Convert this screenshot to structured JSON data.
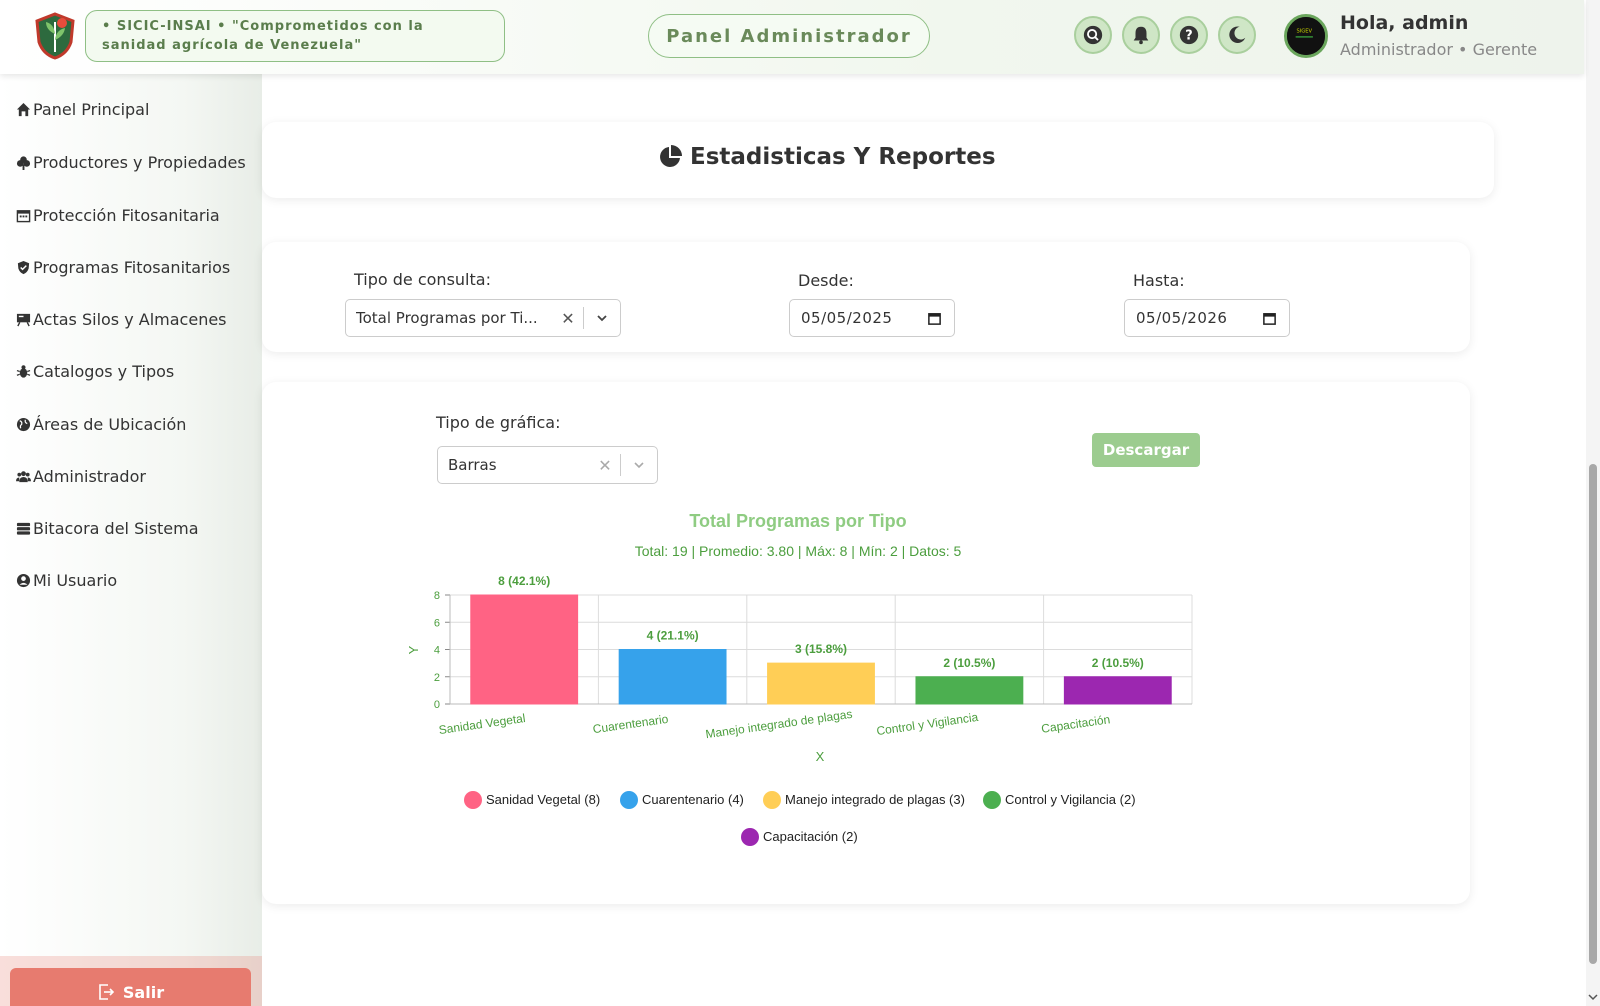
{
  "header": {
    "slogan": "• SICIC-INSAI • \"Comprometidos con la sanidad agrícola de Venezuela\"",
    "panel_title": "Panel Administrador",
    "icons": [
      "search-icon",
      "bell-icon",
      "help-icon",
      "moon-icon"
    ],
    "greeting": "Hola, admin",
    "role": "Administrador • Gerente"
  },
  "sidebar": {
    "items": [
      {
        "label": "Panel Principal",
        "icon": "home-icon"
      },
      {
        "label": "Productores y Propiedades",
        "icon": "leaf-icon"
      },
      {
        "label": "Protección Fitosanitaria",
        "icon": "calendar-icon"
      },
      {
        "label": "Programas Fitosanitarios",
        "icon": "shield-icon"
      },
      {
        "label": "Actas Silos y Almacenes",
        "icon": "board-icon"
      },
      {
        "label": "Catalogos y Tipos",
        "icon": "bug-icon"
      },
      {
        "label": "Áreas de Ubicación",
        "icon": "globe-icon"
      },
      {
        "label": "Administrador",
        "icon": "users-icon"
      },
      {
        "label": "Bitacora del Sistema",
        "icon": "database-icon"
      },
      {
        "label": "Mi Usuario",
        "icon": "user-circle-icon"
      }
    ],
    "logout_label": "Salir"
  },
  "page": {
    "title": "Estadisticas Y Reportes"
  },
  "filters": {
    "query_label": "Tipo de consulta:",
    "query_value": "Total Programas por Ti...",
    "from_label": "Desde:",
    "from_value": "05/05/2025",
    "to_label": "Hasta:",
    "to_value": "05/05/2026"
  },
  "chart_panel": {
    "type_label": "Tipo de gráfica:",
    "type_value": "Barras",
    "download_label": "Descargar"
  },
  "chart_data": {
    "type": "bar",
    "title": "Total Programas por Tipo",
    "subtitle": "Total: 19 | Promedio: 3.80 | Máx: 8 | Mín: 2 | Datos: 5",
    "categories": [
      "Sanidad Vegetal",
      "Cuarentenario",
      "Manejo integrado de plagas",
      "Control y Vigilancia",
      "Capacitación"
    ],
    "values": [
      8,
      4,
      3,
      2,
      2
    ],
    "data_labels": [
      "8 (42.1%)",
      "4 (21.1%)",
      "3 (15.8%)",
      "2 (10.5%)",
      "2 (10.5%)"
    ],
    "colors": [
      "#ff6384",
      "#36a2eb",
      "#ffce56",
      "#4caf50",
      "#9c27b0"
    ],
    "legend": [
      "Sanidad Vegetal (8)",
      "Cuarentenario (4)",
      "Manejo integrado de plagas (3)",
      "Control y Vigilancia (2)",
      "Capacitación (2)"
    ],
    "xlabel": "X",
    "ylabel": "Y",
    "ylim": [
      0,
      8
    ],
    "yticks": [
      0,
      2,
      4,
      6,
      8
    ],
    "grid": true,
    "legend_position": "bottom"
  }
}
